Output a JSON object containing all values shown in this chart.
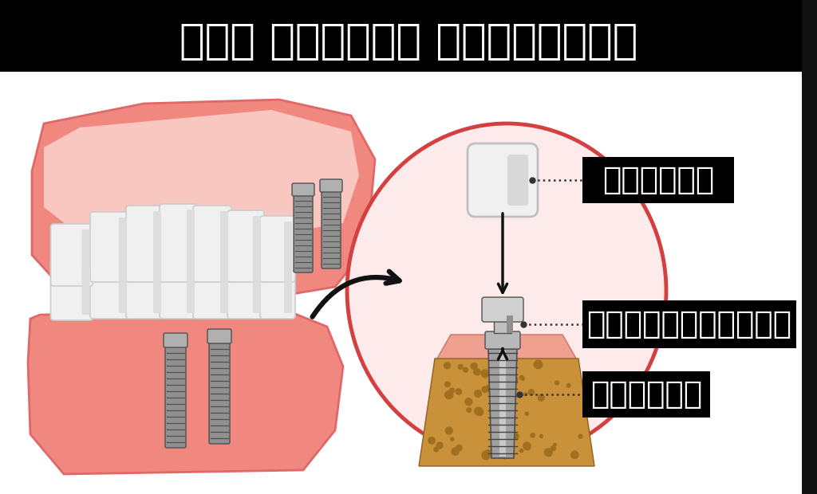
{
  "title": "பல் மாற்று சிகிச்சை",
  "title_bg": "#000000",
  "title_color": "#ffffff",
  "bg_color": "#ffffff",
  "label1": "க்ரோன்",
  "label2": "அபூட்மென்ட்",
  "label3": "ஸ்க்ரூ",
  "label_bg": "#000000",
  "label_color": "#ffffff",
  "circle_fill": "#fdeaea",
  "circle_edge": "#d44040",
  "gum_pink": "#f08880",
  "gum_dark": "#e06868",
  "tooth_white": "#f0f0f0",
  "tooth_edge": "#cccccc",
  "bone_fill": "#c8913a",
  "bone_dot": "#a07020",
  "metal_light": "#c8c8c8",
  "metal_mid": "#a0a0a0",
  "metal_dark": "#606060",
  "arrow_black": "#111111",
  "dot_color": "#333333"
}
